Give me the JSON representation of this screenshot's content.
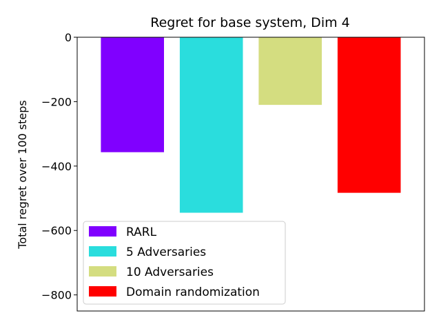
{
  "chart_data": {
    "type": "bar",
    "title": "Regret for base system, Dim 4",
    "xlabel": "",
    "ylabel": "Total regret over 100 steps",
    "ylim": [
      -850,
      0
    ],
    "yticks": [
      0,
      -200,
      -400,
      -600,
      -800
    ],
    "ytick_labels": [
      "0",
      "−200",
      "−400",
      "−600",
      "−800"
    ],
    "grid": false,
    "legend_position": "bottom-left",
    "categories": [
      "RARL",
      "5 Adversaries",
      "10 Adversaries",
      "Domain randomization"
    ],
    "values": [
      -357,
      -545,
      -210,
      -483
    ],
    "colors": [
      "#8000ff",
      "#2adddd",
      "#d4dd80",
      "#ff0000"
    ]
  }
}
